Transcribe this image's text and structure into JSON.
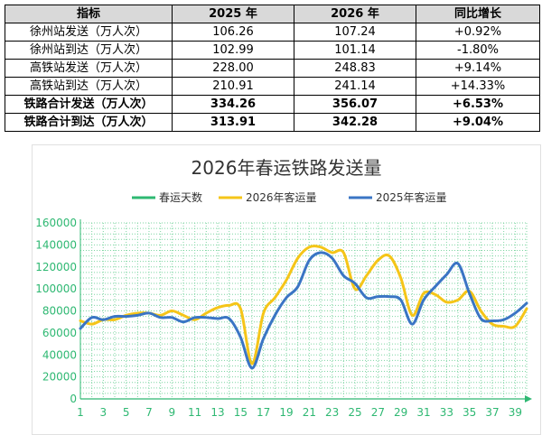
{
  "table": {
    "headers": [
      "指标",
      "2025 年",
      "2026 年",
      "同比增长"
    ],
    "rows": [
      {
        "label": "徐州站发送（万人次）",
        "v2025": "106.26",
        "v2026": "107.24",
        "growth": "+0.92%",
        "bold": false
      },
      {
        "label": "徐州站到达（万人次）",
        "v2025": "102.99",
        "v2026": "101.14",
        "growth": "-1.80%",
        "bold": false
      },
      {
        "label": "高铁站发送（万人次）",
        "v2025": "228.00",
        "v2026": "248.83",
        "growth": "+9.14%",
        "bold": false
      },
      {
        "label": "高铁站到达（万人次）",
        "v2025": "210.91",
        "v2026": "241.14",
        "growth": "+14.33%",
        "bold": false
      },
      {
        "label": "铁路合计发送（万人次）",
        "v2025": "334.26",
        "v2026": "356.07",
        "growth": "+6.53%",
        "bold": true
      },
      {
        "label": "铁路合计到达（万人次）",
        "v2025": "313.91",
        "v2026": "342.28",
        "growth": "+9.04%",
        "bold": true
      }
    ]
  },
  "chart_data": {
    "type": "line",
    "title": "2026年春运铁路发送量",
    "legend_position": "top",
    "grid": true,
    "ylim": [
      0,
      160000
    ],
    "yticks": [
      0,
      20000,
      40000,
      60000,
      80000,
      100000,
      120000,
      140000,
      160000
    ],
    "xlim": [
      1,
      40
    ],
    "xticks": [
      1,
      3,
      5,
      7,
      9,
      11,
      13,
      15,
      17,
      19,
      21,
      23,
      25,
      27,
      29,
      31,
      33,
      35,
      37,
      39
    ],
    "series": [
      {
        "name": "春运天数",
        "color": "#2eb872",
        "values": []
      },
      {
        "name": "2026年客运量",
        "color": "#f5c518",
        "x": [
          1,
          2,
          3,
          4,
          5,
          6,
          7,
          8,
          9,
          10,
          11,
          12,
          13,
          14,
          15,
          16,
          17,
          18,
          19,
          20,
          21,
          22,
          23,
          24,
          25,
          26,
          27,
          28,
          29,
          30,
          31,
          32,
          33,
          34,
          35,
          36,
          37,
          38,
          39,
          40
        ],
        "values": [
          71000,
          68000,
          72000,
          72000,
          76000,
          78000,
          78000,
          76000,
          80000,
          76000,
          72000,
          78000,
          83000,
          85000,
          82000,
          32000,
          78000,
          92000,
          108000,
          128000,
          138000,
          138000,
          133000,
          133000,
          100000,
          112000,
          126000,
          130000,
          110000,
          76000,
          96000,
          95000,
          88000,
          90000,
          98000,
          80000,
          68000,
          66000,
          66000,
          82000
        ]
      },
      {
        "name": "2025年客运量",
        "color": "#3a75c4",
        "x": [
          1,
          2,
          3,
          4,
          5,
          6,
          7,
          8,
          9,
          10,
          11,
          12,
          13,
          14,
          15,
          16,
          17,
          18,
          19,
          20,
          21,
          22,
          23,
          24,
          25,
          26,
          27,
          28,
          29,
          30,
          31,
          32,
          33,
          34,
          35,
          36,
          37,
          38,
          39,
          40
        ],
        "values": [
          64000,
          74000,
          72000,
          75000,
          75000,
          76000,
          78000,
          74000,
          74000,
          70000,
          74000,
          74000,
          73000,
          73000,
          56000,
          28000,
          55000,
          76000,
          92000,
          102000,
          126000,
          133000,
          128000,
          112000,
          105000,
          92000,
          93000,
          93000,
          90000,
          68000,
          90000,
          102000,
          113000,
          123000,
          96000,
          73000,
          71000,
          72000,
          78000,
          87000
        ]
      }
    ]
  }
}
